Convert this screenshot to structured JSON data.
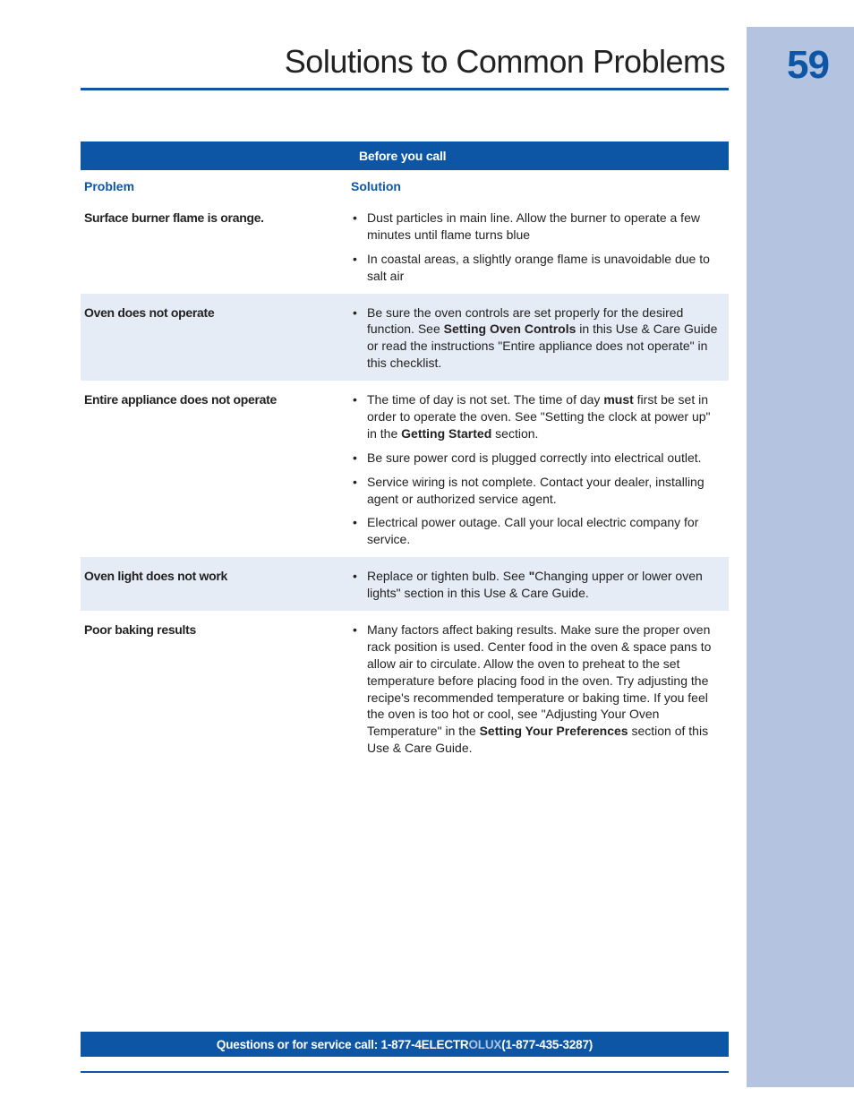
{
  "page": {
    "title": "Solutions to Common Problems",
    "number": "59"
  },
  "colors": {
    "brand_blue": "#0d56a6",
    "side_tab": "#b3c3e0",
    "zebra": "#e6ecf5",
    "text": "#222222",
    "white": "#ffffff"
  },
  "table": {
    "banner_label": "Before you call",
    "columns": {
      "problem": "Problem",
      "solution": "Solution"
    },
    "rows": [
      {
        "problem": "Surface burner flame is orange.",
        "zebra": false,
        "solutions": [
          [
            {
              "t": "Dust particles in main line. Allow the burner to operate a few minutes until flame turns blue"
            }
          ],
          [
            {
              "t": "In coastal areas, a slightly orange flame is unavoidable due to salt air"
            }
          ]
        ]
      },
      {
        "problem": "Oven does not operate",
        "zebra": true,
        "solutions": [
          [
            {
              "t": "Be sure the oven controls are set properly for the desired function. See "
            },
            {
              "t": "Setting Oven Controls",
              "b": true
            },
            {
              "t": " in this Use & Care Guide or read the instructions \"Entire appliance does not operate\" in this checklist."
            }
          ]
        ]
      },
      {
        "problem": "Entire appliance does not operate",
        "zebra": false,
        "solutions": [
          [
            {
              "t": "The time of day is not set. The time of day "
            },
            {
              "t": "must",
              "b": true
            },
            {
              "t": " first be set in order to operate the oven. See \"Setting the clock at power up\" in the "
            },
            {
              "t": "Getting Started",
              "b": true
            },
            {
              "t": "  section."
            }
          ],
          [
            {
              "t": "Be sure power cord is plugged correctly into electrical outlet."
            }
          ],
          [
            {
              "t": "Service wiring is not complete. Contact your dealer, installing agent or authorized service agent."
            }
          ],
          [
            {
              "t": "Electrical power outage.  Call your local electric company for service."
            }
          ]
        ]
      },
      {
        "problem": "Oven light does not work",
        "zebra": true,
        "solutions": [
          [
            {
              "t": "Replace or tighten bulb. See "
            },
            {
              "t": "\"",
              "b": true
            },
            {
              "t": "Changing upper or lower oven lights\" section in this Use & Care Guide."
            }
          ]
        ]
      },
      {
        "problem": "Poor baking results",
        "zebra": false,
        "solutions": [
          [
            {
              "t": "Many factors affect baking results. Make sure the proper oven rack position is used. Center food in the oven & space pans to allow air to circulate. Allow the oven to preheat to the set temperature before placing food in the oven. Try adjusting the recipe's recommended temperature or baking time. If you feel the oven is too hot or cool, see \"Adjusting Your Oven Temperature\" in the "
            },
            {
              "t": "Setting Your Preferences",
              "b": true
            },
            {
              "t": " section of this Use & Care Guide."
            }
          ]
        ]
      }
    ]
  },
  "footer": {
    "prefix": "Questions or for service call:  1-877-4ELECTR",
    "brand_suffix": "OLUX",
    "suffix": " (1-877-435-3287)"
  }
}
